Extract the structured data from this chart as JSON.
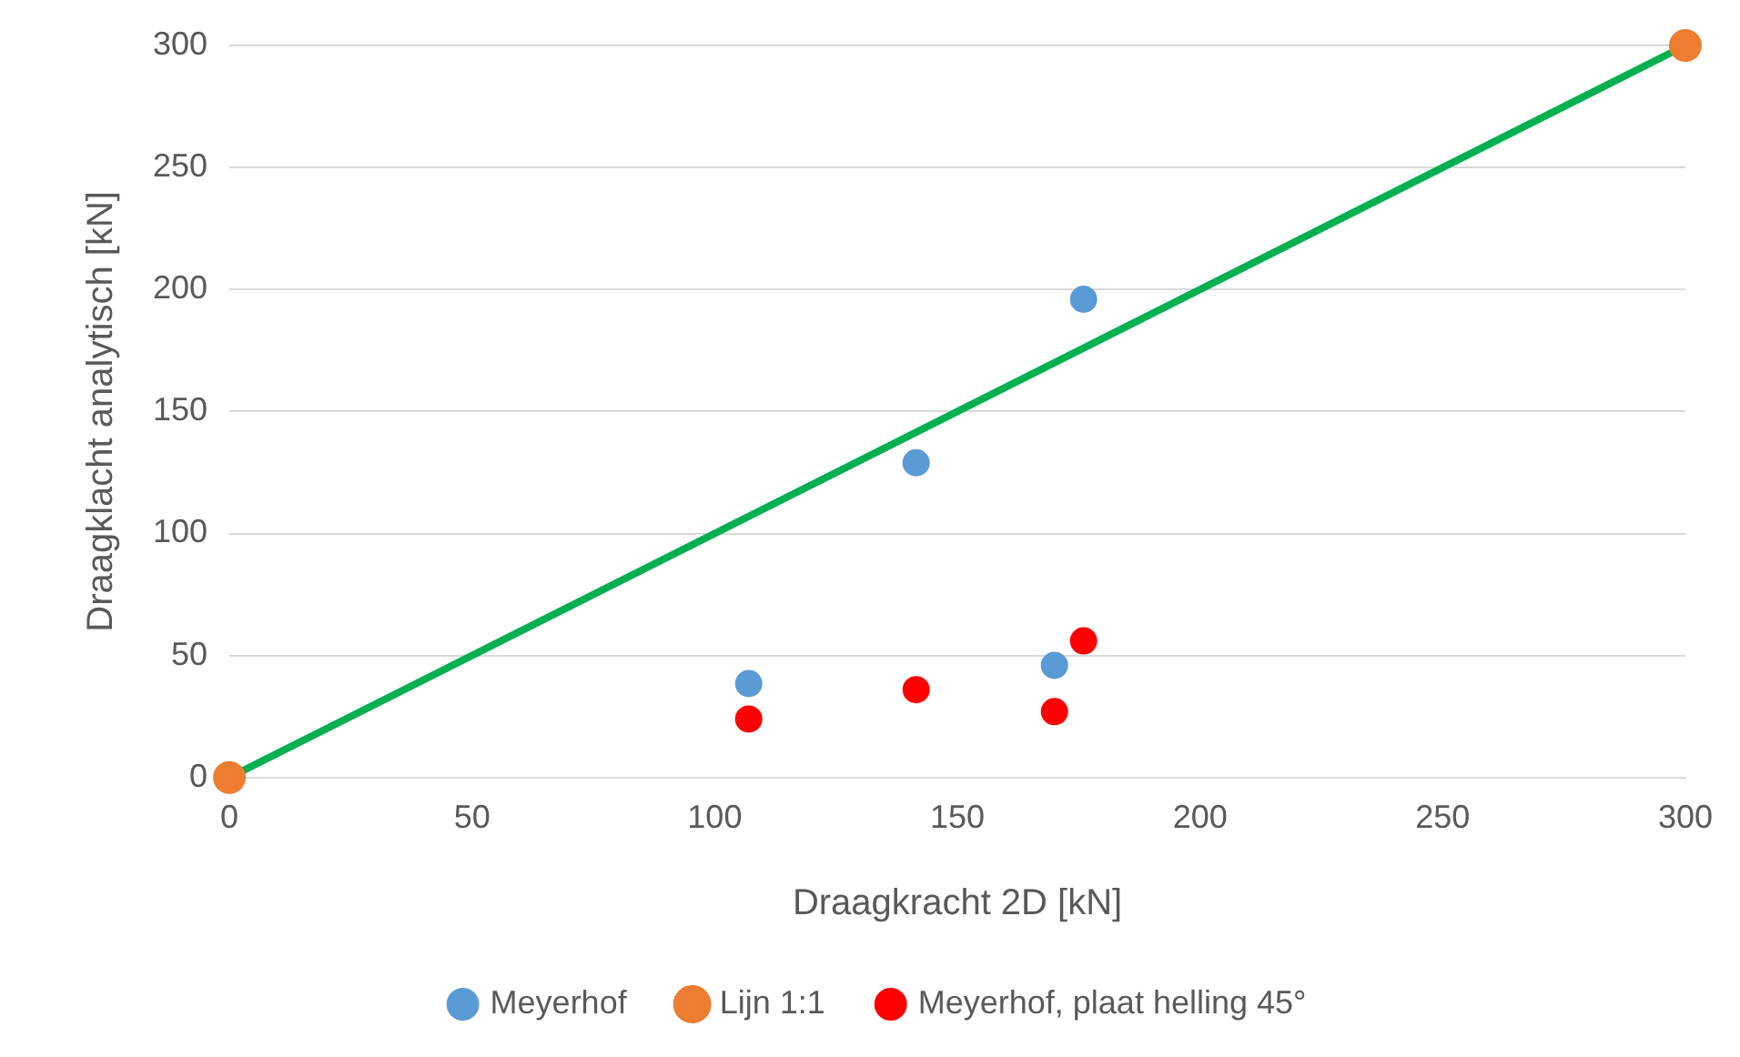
{
  "chart_data": {
    "type": "scatter",
    "xlabel": "Draagkracht 2D [kN]",
    "ylabel": "Draagklacht analytisch [kN]",
    "xlim": [
      0,
      300
    ],
    "xticks": [
      0,
      50,
      100,
      150,
      200,
      250,
      300
    ],
    "ylim": [
      0,
      300
    ],
    "yticks": [
      0,
      50,
      100,
      150,
      200,
      250,
      300
    ],
    "grid": "y",
    "legend": "bottom",
    "marker": "circle",
    "series": [
      {
        "name": "Meyerhof",
        "color": "#5b9bd5",
        "x": [
          107,
          141.5,
          176,
          170
        ],
        "values": [
          38.5,
          129,
          196,
          46
        ]
      },
      {
        "name": "Lijn 1:1",
        "type": "line",
        "color": "#00b050",
        "colors": [
          "#ed7d31",
          "#ed7d31"
        ],
        "x": [
          0,
          300
        ],
        "values": [
          0,
          300
        ]
      },
      {
        "name": "Meyerhof, plaat helling 45°",
        "color": "#ff0000",
        "x": [
          107,
          141.5,
          170,
          176
        ],
        "values": [
          24,
          36,
          27,
          56
        ]
      }
    ]
  }
}
